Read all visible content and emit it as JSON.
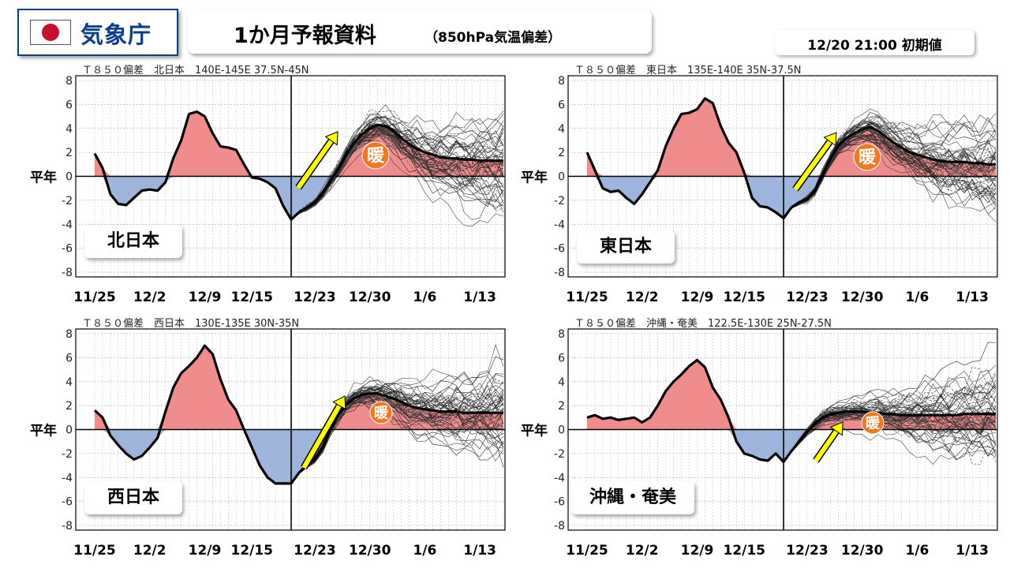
{
  "header": {
    "agency_name": "気象庁",
    "title": "1か月予報資料",
    "subtitle": "（850hPa気温偏差）",
    "initial_time": "12/20 21:00 初期値"
  },
  "colors": {
    "warm_fill": "#f08c8c",
    "cold_fill": "#9db4dc",
    "arrow": "#ffff00",
    "warm_badge": "#f07820",
    "agency_blue": "#0a3f8c"
  },
  "chart_data": [
    {
      "type": "line",
      "region": "北日本",
      "header_label": "Ｔ８５０偏差　北日本　140E-145E  37.5N-45N",
      "badge": "暖",
      "zero_label": "平年",
      "xticks": [
        "11/25",
        "12/2",
        "12/9",
        "12/15",
        "12/23",
        "12/30",
        "1/6",
        "1/13"
      ],
      "ylim": [
        -8,
        8
      ],
      "yticks": [
        -8,
        -6,
        -4,
        -2,
        0,
        2,
        4,
        6,
        8
      ],
      "initial_day": 25,
      "x_range": [
        0,
        52
      ],
      "observed": {
        "x": [
          0,
          1,
          2,
          3,
          4,
          5,
          6,
          7,
          8,
          9,
          10,
          11,
          12,
          13,
          14,
          15,
          16,
          17,
          18,
          19,
          20,
          21,
          22,
          23,
          24,
          25
        ],
        "y": [
          1.9,
          0.7,
          -1.5,
          -2.3,
          -2.4,
          -1.8,
          -1.2,
          -1.1,
          -1.2,
          -0.5,
          1.5,
          3.0,
          5.2,
          5.4,
          5.0,
          3.6,
          2.5,
          2.4,
          2.2,
          1.0,
          -0.1,
          -0.2,
          -0.5,
          -1.0,
          -2.5,
          -3.6
        ]
      },
      "ensemble_mean": {
        "x": [
          25,
          26,
          27,
          28,
          29,
          30,
          31,
          32,
          33,
          34,
          35,
          36,
          37,
          38,
          39,
          40,
          41,
          42,
          43,
          44,
          45,
          46,
          47,
          48,
          49,
          50,
          51,
          52
        ],
        "y": [
          -3.6,
          -3.0,
          -2.6,
          -2.2,
          -1.4,
          -0.4,
          0.6,
          1.8,
          2.8,
          3.5,
          4.0,
          4.3,
          4.2,
          3.8,
          3.2,
          2.7,
          2.3,
          2.0,
          1.8,
          1.6,
          1.5,
          1.5,
          1.4,
          1.4,
          1.3,
          1.3,
          1.3,
          1.3
        ]
      },
      "member_count": 50
    },
    {
      "type": "line",
      "region": "東日本",
      "header_label": "Ｔ８５０偏差　東日本　135E-140E  35N-37.5N",
      "badge": "暖",
      "zero_label": "平年",
      "xticks": [
        "11/25",
        "12/2",
        "12/9",
        "12/15",
        "12/23",
        "12/30",
        "1/6",
        "1/13"
      ],
      "ylim": [
        -8,
        8
      ],
      "yticks": [
        -8,
        -6,
        -4,
        -2,
        0,
        2,
        4,
        6,
        8
      ],
      "initial_day": 25,
      "x_range": [
        0,
        52
      ],
      "observed": {
        "x": [
          0,
          1,
          2,
          3,
          4,
          5,
          6,
          7,
          8,
          9,
          10,
          11,
          12,
          13,
          14,
          15,
          16,
          17,
          18,
          19,
          20,
          21,
          22,
          23,
          24,
          25
        ],
        "y": [
          2.0,
          0.5,
          -1.0,
          -1.3,
          -1.2,
          -1.8,
          -2.3,
          -1.5,
          -0.5,
          0.5,
          2.5,
          4.0,
          5.2,
          5.3,
          5.6,
          6.5,
          6.1,
          4.2,
          2.8,
          2.0,
          0.3,
          -1.8,
          -2.5,
          -2.6,
          -3.0,
          -3.5
        ]
      },
      "ensemble_mean": {
        "x": [
          25,
          26,
          27,
          28,
          29,
          30,
          31,
          32,
          33,
          34,
          35,
          36,
          37,
          38,
          39,
          40,
          41,
          42,
          43,
          44,
          45,
          46,
          47,
          48,
          49,
          50,
          51,
          52
        ],
        "y": [
          -3.5,
          -2.6,
          -2.2,
          -1.9,
          -1.2,
          0.2,
          1.5,
          2.6,
          3.2,
          3.6,
          3.9,
          4.1,
          3.8,
          3.3,
          2.8,
          2.4,
          2.0,
          1.8,
          1.6,
          1.4,
          1.3,
          1.2,
          1.2,
          1.2,
          1.1,
          1.1,
          1.0,
          1.0
        ]
      },
      "member_count": 50
    },
    {
      "type": "line",
      "region": "西日本",
      "header_label": "Ｔ８５０偏差　西日本　130E-135E  30N-35N",
      "badge": "暖",
      "zero_label": "平年",
      "xticks": [
        "11/25",
        "12/2",
        "12/9",
        "12/15",
        "12/23",
        "12/30",
        "1/6",
        "1/13"
      ],
      "ylim": [
        -8,
        8
      ],
      "yticks": [
        -8,
        -6,
        -4,
        -2,
        0,
        2,
        4,
        6,
        8
      ],
      "initial_day": 25,
      "x_range": [
        0,
        52
      ],
      "observed": {
        "x": [
          0,
          1,
          2,
          3,
          4,
          5,
          6,
          7,
          8,
          9,
          10,
          11,
          12,
          13,
          14,
          15,
          16,
          17,
          18,
          19,
          20,
          21,
          22,
          23,
          24,
          25
        ],
        "y": [
          1.6,
          1.0,
          -0.5,
          -1.3,
          -2.0,
          -2.5,
          -2.2,
          -1.5,
          -0.7,
          1.5,
          3.5,
          4.7,
          5.3,
          6.0,
          7.0,
          6.3,
          4.2,
          2.5,
          1.6,
          0.0,
          -1.5,
          -3.0,
          -4.0,
          -4.5,
          -4.5,
          -4.5
        ]
      },
      "ensemble_mean": {
        "x": [
          25,
          26,
          27,
          28,
          29,
          30,
          31,
          32,
          33,
          34,
          35,
          36,
          37,
          38,
          39,
          40,
          41,
          42,
          43,
          44,
          45,
          46,
          47,
          48,
          49,
          50,
          51,
          52
        ],
        "y": [
          -4.5,
          -3.6,
          -3.0,
          -2.5,
          -1.5,
          0.0,
          1.2,
          2.1,
          2.6,
          2.9,
          3.0,
          3.0,
          2.8,
          2.6,
          2.3,
          2.0,
          1.8,
          1.7,
          1.6,
          1.5,
          1.5,
          1.5,
          1.4,
          1.4,
          1.4,
          1.4,
          1.4,
          1.4
        ]
      },
      "member_count": 50
    },
    {
      "type": "line",
      "region": "沖縄・奄美",
      "header_label": "Ｔ８５０偏差　沖縄・奄美　122.5E-130E  25N-27.5N",
      "badge": "暖",
      "zero_label": "平年",
      "xticks": [
        "11/25",
        "12/2",
        "12/9",
        "12/15",
        "12/23",
        "12/30",
        "1/6",
        "1/13"
      ],
      "ylim": [
        -8,
        8
      ],
      "yticks": [
        -8,
        -6,
        -4,
        -2,
        0,
        2,
        4,
        6,
        8
      ],
      "initial_day": 25,
      "x_range": [
        0,
        52
      ],
      "observed": {
        "x": [
          0,
          1,
          2,
          3,
          4,
          5,
          6,
          7,
          8,
          9,
          10,
          11,
          12,
          13,
          14,
          15,
          16,
          17,
          18,
          19,
          20,
          21,
          22,
          23,
          24,
          25
        ],
        "y": [
          1.0,
          1.2,
          0.9,
          1.0,
          0.8,
          0.9,
          1.0,
          0.6,
          1.0,
          2.0,
          3.2,
          4.0,
          4.6,
          5.3,
          5.8,
          5.2,
          3.5,
          2.5,
          1.0,
          -1.0,
          -2.0,
          -2.2,
          -2.5,
          -2.6,
          -2.0,
          -2.7
        ]
      },
      "ensemble_mean": {
        "x": [
          25,
          26,
          27,
          28,
          29,
          30,
          31,
          32,
          33,
          34,
          35,
          36,
          37,
          38,
          39,
          40,
          41,
          42,
          43,
          44,
          45,
          46,
          47,
          48,
          49,
          50,
          51,
          52
        ],
        "y": [
          -2.7,
          -1.8,
          -1.0,
          -0.2,
          0.5,
          1.0,
          1.3,
          1.4,
          1.5,
          1.5,
          1.5,
          1.4,
          1.4,
          1.3,
          1.3,
          1.2,
          1.2,
          1.2,
          1.2,
          1.2,
          1.2,
          1.2,
          1.2,
          1.3,
          1.3,
          1.3,
          1.3,
          1.3
        ]
      },
      "member_count": 50
    }
  ]
}
